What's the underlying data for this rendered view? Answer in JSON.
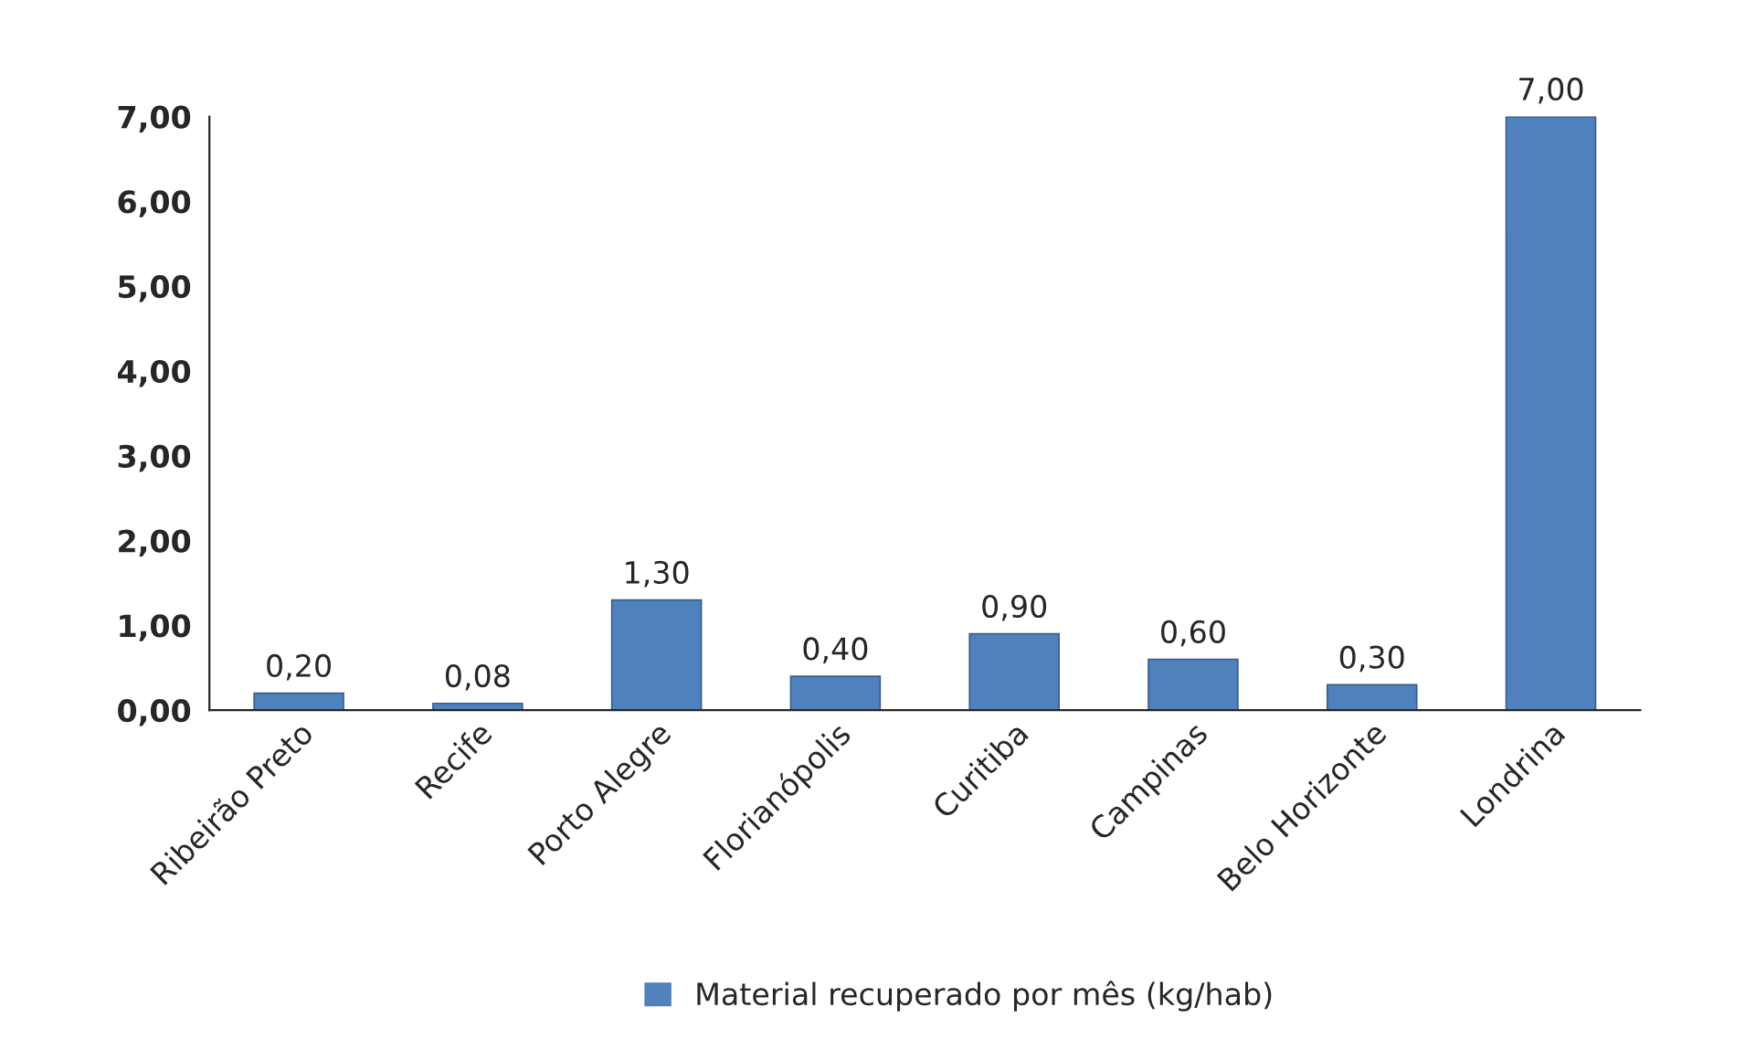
{
  "chart_data": {
    "type": "bar",
    "categories": [
      "Ribeirão Preto",
      "Recife",
      "Porto Alegre",
      "Florianópolis",
      "Curitiba",
      "Campinas",
      "Belo Horizonte",
      "Londrina"
    ],
    "series": [
      {
        "name": "Material recuperado por mês (kg/hab)",
        "color": "#4f81bd",
        "values": [
          0.2,
          0.08,
          1.3,
          0.4,
          0.9,
          0.6,
          0.3,
          7.0
        ],
        "value_labels": [
          "0,20",
          "0,08",
          "1,30",
          "0,40",
          "0,90",
          "0,60",
          "0,30",
          "7,00"
        ]
      }
    ],
    "ylim": [
      0,
      7
    ],
    "yticks": [
      {
        "value": 0,
        "label": "0,00"
      },
      {
        "value": 1,
        "label": "1,00"
      },
      {
        "value": 2,
        "label": "2,00"
      },
      {
        "value": 3,
        "label": "3,00"
      },
      {
        "value": 4,
        "label": "4,00"
      },
      {
        "value": 5,
        "label": "5,00"
      },
      {
        "value": 6,
        "label": "6,00"
      },
      {
        "value": 7,
        "label": "7,00"
      }
    ],
    "grid": false,
    "legend": "bottom"
  }
}
